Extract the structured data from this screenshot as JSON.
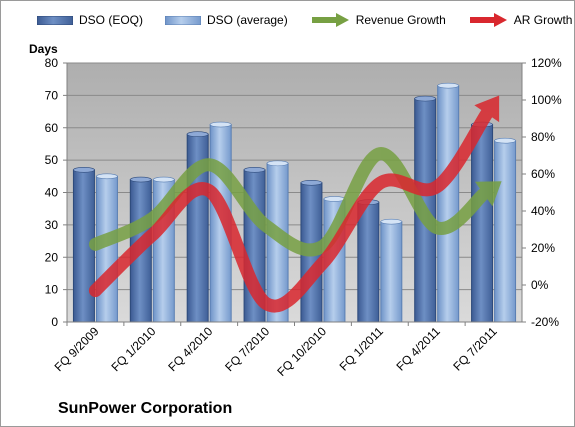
{
  "chart_data": {
    "type": "bar",
    "title": "",
    "caption": "SunPower Corporation",
    "categories": [
      "FQ 9/2009",
      "FQ 1/2010",
      "FQ 4/2010",
      "FQ 7/2010",
      "FQ 10/2010",
      "FQ 1/2011",
      "FQ 4/2011",
      "FQ 7/2011"
    ],
    "ylabel": "Days",
    "ylim": [
      0,
      80
    ],
    "yticks": [
      "0",
      "10",
      "20",
      "30",
      "40",
      "50",
      "60",
      "70",
      "80"
    ],
    "y2lim": [
      -20,
      120
    ],
    "y2ticks": [
      "-20%",
      "0%",
      "20%",
      "40%",
      "60%",
      "80%",
      "100%",
      "120%"
    ],
    "grid": true,
    "legend_position": "top",
    "series": [
      {
        "name": "DSO (EOQ)",
        "type": "bar",
        "axis": "left",
        "color": "#4F6FA8",
        "values": [
          47,
          44,
          58,
          47,
          43,
          37,
          69,
          61
        ]
      },
      {
        "name": "DSO (average)",
        "type": "bar",
        "axis": "left",
        "color": "#8FB2DE",
        "values": [
          45,
          44,
          61,
          49,
          38,
          31,
          73,
          56
        ]
      },
      {
        "name": "Revenue Growth",
        "type": "line",
        "axis": "right",
        "unit": "%",
        "color": "#77A043",
        "values": [
          22,
          36,
          65,
          32,
          21,
          71,
          31,
          53
        ]
      },
      {
        "name": "AR Growth",
        "type": "line",
        "axis": "right",
        "unit": "%",
        "color": "#D9282E",
        "values": [
          -3,
          27,
          51,
          -10,
          12,
          55,
          53,
          98
        ]
      }
    ]
  }
}
